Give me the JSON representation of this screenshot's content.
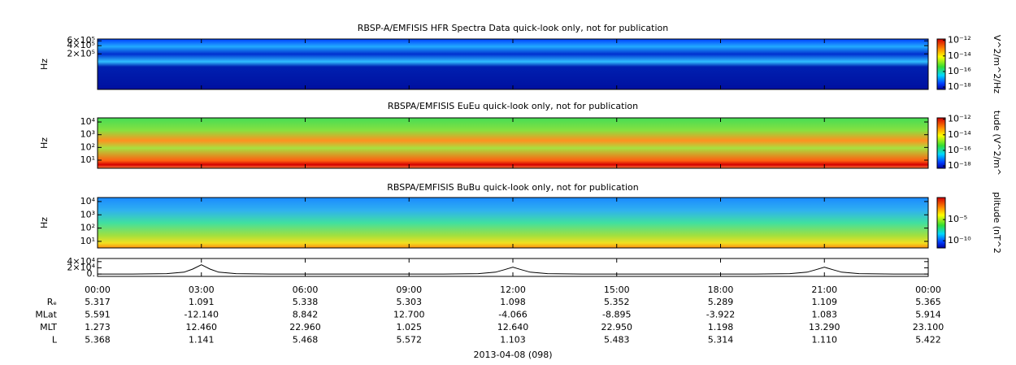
{
  "chart_data": [
    {
      "type": "spectrogram",
      "title": "RBSP-A/EMFISIS  HFR Spectra Data quick-look only, not for publication",
      "ylabel": "Hz",
      "log": true,
      "ylim": [
        10000,
        700000
      ],
      "yticks": [
        {
          "value": 600000,
          "label": "6×10⁵"
        },
        {
          "value": 400000,
          "label": "4×10⁵"
        },
        {
          "value": 200000,
          "label": "2×10⁵"
        }
      ],
      "colorbar": {
        "label": "V^2/m^2/Hz",
        "log": true,
        "zlim": [
          5e-19,
          1.5e-12
        ],
        "zticks": [
          {
            "value": 1e-12,
            "label": "10⁻¹²"
          },
          {
            "value": 1e-14,
            "label": "10⁻¹⁴"
          },
          {
            "value": 1e-16,
            "label": "10⁻¹⁶"
          },
          {
            "value": 1e-18,
            "label": "10⁻¹⁸"
          }
        ]
      }
    },
    {
      "type": "spectrogram",
      "title": "RBSPA/EMFISIS  EuEu quick-look only, not for publication",
      "ylabel": "Hz",
      "log": true,
      "ylim": [
        2.3,
        21000
      ],
      "yticks": [
        {
          "value": 10000,
          "label": "10⁴"
        },
        {
          "value": 1000,
          "label": "10³"
        },
        {
          "value": 100,
          "label": "10²"
        },
        {
          "value": 10,
          "label": "10¹"
        }
      ],
      "colorbar": {
        "label": "tude (V^2/m^",
        "log": true,
        "zlim": [
          5e-19,
          1.5e-12
        ],
        "zticks": [
          {
            "value": 1e-12,
            "label": "10⁻¹²"
          },
          {
            "value": 1e-14,
            "label": "10⁻¹⁴"
          },
          {
            "value": 1e-16,
            "label": "10⁻¹⁶"
          },
          {
            "value": 1e-18,
            "label": "10⁻¹⁸"
          }
        ]
      }
    },
    {
      "type": "spectrogram",
      "title": "RBSPA/EMFISIS  BuBu quick-look only, not for publication",
      "ylabel": "Hz",
      "log": true,
      "ylim": [
        3.2,
        20000
      ],
      "yticks": [
        {
          "value": 10000,
          "label": "10⁴"
        },
        {
          "value": 1000,
          "label": "10³"
        },
        {
          "value": 100,
          "label": "10²"
        },
        {
          "value": 10,
          "label": "10¹"
        }
      ],
      "colorbar": {
        "label": "plitude (nT^2",
        "log": true,
        "zlim": [
          2e-12,
          1.6
        ],
        "zticks": [
          {
            "value": 1e-05,
            "label": "10⁻⁵"
          },
          {
            "value": 1e-10,
            "label": "10⁻¹⁰"
          }
        ]
      }
    },
    {
      "type": "line",
      "color": "#000000",
      "ylim": [
        -7500,
        50000
      ],
      "yticks": [
        {
          "value": 40000,
          "label": "4×10⁴"
        },
        {
          "value": 20000,
          "label": "2×10⁴"
        },
        {
          "value": 0,
          "label": "0."
        }
      ],
      "x": [
        0,
        1,
        2,
        2.5,
        2.75,
        3,
        3.25,
        3.5,
        4,
        5,
        7,
        9,
        10,
        11,
        11.5,
        11.75,
        12,
        12.25,
        12.5,
        13,
        14,
        16,
        18,
        19,
        20,
        20.5,
        20.75,
        21,
        21.25,
        21.5,
        22,
        23,
        24
      ],
      "values": [
        0,
        100,
        1500,
        6000,
        16000,
        30000,
        16000,
        6000,
        1500,
        200,
        0,
        0,
        200,
        1500,
        6000,
        14000,
        22000,
        14000,
        6000,
        1500,
        200,
        0,
        0,
        200,
        1500,
        6000,
        14000,
        22000,
        14000,
        6000,
        1500,
        200,
        0
      ]
    }
  ],
  "time_axis": {
    "xlim": [
      0,
      24
    ],
    "xticks": [
      {
        "value": 0,
        "label": "00:00"
      },
      {
        "value": 3,
        "label": "03:00"
      },
      {
        "value": 6,
        "label": "06:00"
      },
      {
        "value": 9,
        "label": "09:00"
      },
      {
        "value": 12,
        "label": "12:00"
      },
      {
        "value": 15,
        "label": "15:00"
      },
      {
        "value": 18,
        "label": "18:00"
      },
      {
        "value": 21,
        "label": "21:00"
      },
      {
        "value": 24,
        "label": "00:00"
      }
    ]
  },
  "ephemeris": {
    "rows": [
      {
        "label": "Rₑ",
        "values": [
          "5.317",
          "1.091",
          "5.338",
          "5.303",
          "1.098",
          "5.352",
          "5.289",
          "1.109",
          "5.365"
        ]
      },
      {
        "label": "MLat",
        "values": [
          "5.591",
          "-12.140",
          "8.842",
          "12.700",
          "-4.066",
          "-8.895",
          "-3.922",
          "1.083",
          "5.914"
        ]
      },
      {
        "label": "MLT",
        "values": [
          "1.273",
          "12.460",
          "22.960",
          "1.025",
          "12.640",
          "22.950",
          "1.198",
          "13.290",
          "23.100"
        ]
      },
      {
        "label": "L",
        "values": [
          "5.368",
          "1.141",
          "5.468",
          "5.572",
          "1.103",
          "5.483",
          "5.314",
          "1.110",
          "5.422"
        ]
      }
    ],
    "date": "2013-04-08 (098)"
  }
}
